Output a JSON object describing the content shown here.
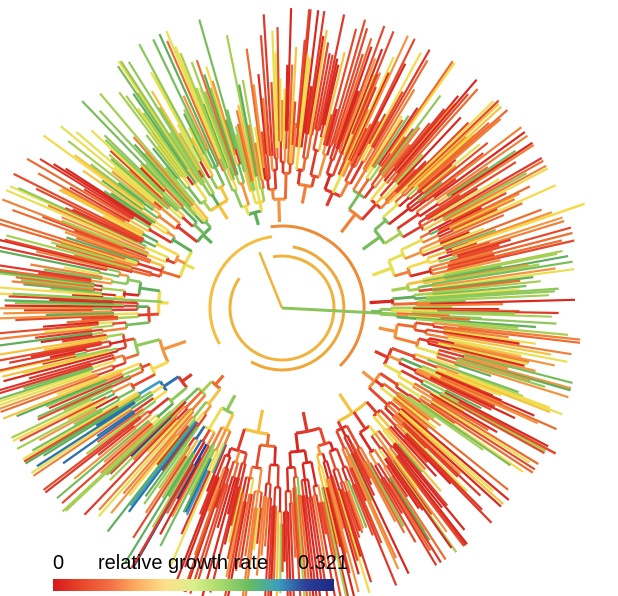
{
  "legend": {
    "min_label": "0",
    "title": "relative growth rate",
    "max_label": "0.321",
    "min_value": 0,
    "max_value": 0.321,
    "gradient_stops": [
      "#d7191c",
      "#e8462a",
      "#f46d43",
      "#fdae61",
      "#fee08b",
      "#d9ef8b",
      "#a6d96a",
      "#66bd63",
      "#3a9fbf",
      "#2c3e9a",
      "#1b2a80"
    ]
  },
  "tree": {
    "type": "circular phylogenetic tree",
    "root_color": "#f2b33d",
    "dominant_colors": [
      "#e3402b",
      "#f06a35",
      "#f5a23c",
      "#f7d448",
      "#a9cf55",
      "#6bbd62",
      "#3a9fbf",
      "#1d3f99"
    ]
  }
}
